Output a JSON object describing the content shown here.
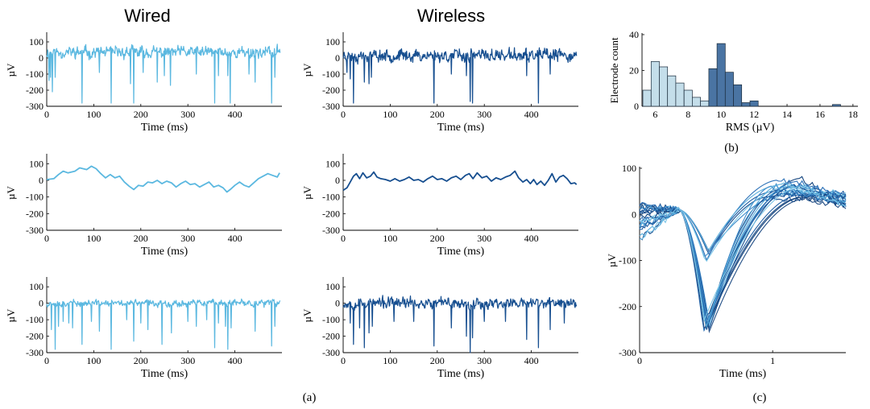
{
  "column_titles": {
    "wired": "Wired",
    "wireless": "Wireless"
  },
  "panel_labels": {
    "a": "(a)",
    "b": "(b)",
    "c": "(c)"
  },
  "colors": {
    "wired": "#5bb8e0",
    "wireless": "#174f90",
    "axis": "#000000"
  },
  "chart_data": [
    {
      "id": "a-wired-raw",
      "type": "line",
      "xlabel": "Time (ms)",
      "ylabel": "µV",
      "xlim": [
        0,
        500
      ],
      "ylim": [
        -300,
        150
      ],
      "xticks": [
        0,
        100,
        200,
        300,
        400
      ],
      "yticks": [
        100,
        0,
        -100,
        -200,
        -300
      ],
      "color": "#5bb8e0",
      "baseline": {
        "mean": 35,
        "noise": 40
      },
      "spikes": [
        [
          5,
          -140
        ],
        [
          8,
          -120
        ],
        [
          12,
          -210
        ],
        [
          18,
          -120
        ],
        [
          75,
          -280
        ],
        [
          112,
          -90
        ],
        [
          137,
          -280
        ],
        [
          178,
          -160
        ],
        [
          185,
          -280
        ],
        [
          205,
          -90
        ],
        [
          235,
          -150
        ],
        [
          250,
          -110
        ],
        [
          263,
          -170
        ],
        [
          318,
          -100
        ],
        [
          357,
          -280
        ],
        [
          365,
          -110
        ],
        [
          385,
          -110
        ],
        [
          390,
          -280
        ],
        [
          430,
          -100
        ],
        [
          443,
          -150
        ],
        [
          478,
          -280
        ],
        [
          485,
          -120
        ]
      ]
    },
    {
      "id": "a-wireless-raw",
      "type": "line",
      "xlabel": "Time (ms)",
      "ylabel": "µV",
      "xlim": [
        0,
        500
      ],
      "ylim": [
        -300,
        150
      ],
      "xticks": [
        0,
        100,
        200,
        300,
        400
      ],
      "yticks": [
        100,
        0,
        -100,
        -200,
        -300
      ],
      "color": "#174f90",
      "baseline": {
        "mean": 15,
        "noise": 42
      },
      "spikes": [
        [
          8,
          -90
        ],
        [
          15,
          -130
        ],
        [
          22,
          -280
        ],
        [
          45,
          -150
        ],
        [
          55,
          -160
        ],
        [
          60,
          -120
        ],
        [
          193,
          -280
        ],
        [
          230,
          -100
        ],
        [
          262,
          -110
        ],
        [
          270,
          -270
        ],
        [
          275,
          -280
        ],
        [
          390,
          -110
        ],
        [
          415,
          -280
        ],
        [
          440,
          -100
        ]
      ]
    },
    {
      "id": "a-wired-lfp",
      "type": "line",
      "xlabel": "Time (ms)",
      "ylabel": "µV",
      "xlim": [
        0,
        500
      ],
      "ylim": [
        -300,
        150
      ],
      "xticks": [
        0,
        100,
        200,
        300,
        400
      ],
      "yticks": [
        100,
        0,
        -100,
        -200,
        -300
      ],
      "color": "#5bb8e0",
      "points": [
        [
          0,
          5
        ],
        [
          15,
          10
        ],
        [
          25,
          35
        ],
        [
          35,
          55
        ],
        [
          45,
          45
        ],
        [
          60,
          55
        ],
        [
          70,
          75
        ],
        [
          85,
          65
        ],
        [
          95,
          85
        ],
        [
          105,
          70
        ],
        [
          115,
          40
        ],
        [
          125,
          15
        ],
        [
          135,
          35
        ],
        [
          145,
          15
        ],
        [
          155,
          25
        ],
        [
          165,
          -10
        ],
        [
          175,
          -35
        ],
        [
          185,
          -55
        ],
        [
          195,
          -30
        ],
        [
          205,
          -35
        ],
        [
          215,
          -10
        ],
        [
          225,
          -15
        ],
        [
          235,
          0
        ],
        [
          245,
          -20
        ],
        [
          255,
          -5
        ],
        [
          265,
          -15
        ],
        [
          275,
          -40
        ],
        [
          285,
          -20
        ],
        [
          295,
          -5
        ],
        [
          305,
          -25
        ],
        [
          315,
          -20
        ],
        [
          325,
          -40
        ],
        [
          335,
          -25
        ],
        [
          345,
          -10
        ],
        [
          355,
          -40
        ],
        [
          365,
          -30
        ],
        [
          375,
          -45
        ],
        [
          383,
          -70
        ],
        [
          390,
          -55
        ],
        [
          400,
          -30
        ],
        [
          410,
          -10
        ],
        [
          420,
          -30
        ],
        [
          430,
          -40
        ],
        [
          440,
          -15
        ],
        [
          450,
          10
        ],
        [
          460,
          25
        ],
        [
          470,
          40
        ],
        [
          480,
          30
        ],
        [
          490,
          20
        ],
        [
          495,
          45
        ]
      ]
    },
    {
      "id": "a-wireless-lfp",
      "type": "line",
      "xlabel": "Time (ms)",
      "ylabel": "µV",
      "xlim": [
        0,
        500
      ],
      "ylim": [
        -300,
        150
      ],
      "xticks": [
        0,
        100,
        200,
        300,
        400
      ],
      "yticks": [
        100,
        0,
        -100,
        -200,
        -300
      ],
      "color": "#174f90",
      "points": [
        [
          0,
          -60
        ],
        [
          8,
          -45
        ],
        [
          15,
          -10
        ],
        [
          22,
          25
        ],
        [
          28,
          40
        ],
        [
          35,
          10
        ],
        [
          42,
          45
        ],
        [
          50,
          15
        ],
        [
          58,
          25
        ],
        [
          65,
          50
        ],
        [
          72,
          20
        ],
        [
          80,
          10
        ],
        [
          90,
          5
        ],
        [
          100,
          -5
        ],
        [
          110,
          10
        ],
        [
          120,
          -5
        ],
        [
          130,
          5
        ],
        [
          140,
          20
        ],
        [
          150,
          0
        ],
        [
          160,
          5
        ],
        [
          170,
          -10
        ],
        [
          180,
          10
        ],
        [
          190,
          25
        ],
        [
          200,
          5
        ],
        [
          210,
          10
        ],
        [
          220,
          -5
        ],
        [
          230,
          15
        ],
        [
          240,
          25
        ],
        [
          250,
          5
        ],
        [
          260,
          30
        ],
        [
          268,
          40
        ],
        [
          276,
          10
        ],
        [
          285,
          45
        ],
        [
          295,
          15
        ],
        [
          305,
          25
        ],
        [
          315,
          -5
        ],
        [
          325,
          15
        ],
        [
          335,
          5
        ],
        [
          345,
          20
        ],
        [
          355,
          30
        ],
        [
          365,
          55
        ],
        [
          373,
          15
        ],
        [
          382,
          -10
        ],
        [
          390,
          5
        ],
        [
          398,
          -20
        ],
        [
          405,
          5
        ],
        [
          412,
          -25
        ],
        [
          420,
          -5
        ],
        [
          428,
          -30
        ],
        [
          436,
          0
        ],
        [
          444,
          40
        ],
        [
          452,
          -10
        ],
        [
          460,
          20
        ],
        [
          468,
          30
        ],
        [
          476,
          10
        ],
        [
          484,
          -20
        ],
        [
          492,
          -15
        ],
        [
          496,
          -25
        ]
      ]
    },
    {
      "id": "a-wired-filtered",
      "type": "line",
      "xlabel": "Time (ms)",
      "ylabel": "µV",
      "xlim": [
        0,
        500
      ],
      "ylim": [
        -300,
        150
      ],
      "xticks": [
        0,
        100,
        200,
        300,
        400
      ],
      "yticks": [
        100,
        0,
        -100,
        -200,
        -300
      ],
      "color": "#5bb8e0",
      "baseline": {
        "mean": 0,
        "noise": 22
      },
      "spikes": [
        [
          10,
          -160
        ],
        [
          18,
          -280
        ],
        [
          25,
          -140
        ],
        [
          35,
          -110
        ],
        [
          47,
          -120
        ],
        [
          55,
          -150
        ],
        [
          75,
          -250
        ],
        [
          95,
          -110
        ],
        [
          112,
          -170
        ],
        [
          137,
          -280
        ],
        [
          170,
          -100
        ],
        [
          185,
          -230
        ],
        [
          200,
          -120
        ],
        [
          215,
          -160
        ],
        [
          245,
          -250
        ],
        [
          265,
          -180
        ],
        [
          300,
          -110
        ],
        [
          318,
          -140
        ],
        [
          340,
          -100
        ],
        [
          357,
          -270
        ],
        [
          365,
          -120
        ],
        [
          380,
          -140
        ],
        [
          385,
          -280
        ],
        [
          392,
          -150
        ],
        [
          443,
          -170
        ],
        [
          478,
          -260
        ],
        [
          485,
          -140
        ]
      ]
    },
    {
      "id": "a-wireless-filtered",
      "type": "line",
      "xlabel": "Time (ms)",
      "ylabel": "µV",
      "xlim": [
        0,
        500
      ],
      "ylim": [
        -300,
        150
      ],
      "xticks": [
        0,
        100,
        200,
        300,
        400
      ],
      "yticks": [
        100,
        0,
        -100,
        -200,
        -300
      ],
      "color": "#174f90",
      "baseline": {
        "mean": 0,
        "noise": 38
      },
      "spikes": [
        [
          15,
          -120
        ],
        [
          22,
          -250
        ],
        [
          35,
          -150
        ],
        [
          45,
          -270
        ],
        [
          55,
          -180
        ],
        [
          62,
          -140
        ],
        [
          108,
          -110
        ],
        [
          150,
          -110
        ],
        [
          193,
          -260
        ],
        [
          230,
          -150
        ],
        [
          262,
          -200
        ],
        [
          270,
          -300
        ],
        [
          275,
          -210
        ],
        [
          300,
          -110
        ],
        [
          345,
          -110
        ],
        [
          390,
          -220
        ],
        [
          415,
          -270
        ],
        [
          440,
          -160
        ],
        [
          470,
          -120
        ]
      ]
    },
    {
      "id": "b-rms-histogram",
      "type": "bar",
      "xlabel": "RMS (µV)",
      "ylabel": "Electrode count",
      "xlim": [
        5.2,
        18.3
      ],
      "ylim": [
        0,
        40
      ],
      "xticks": [
        6,
        8,
        10,
        12,
        14,
        16,
        18
      ],
      "yticks": [
        0,
        20,
        40
      ],
      "bin_width": 0.5,
      "series": [
        {
          "color": "#c4deea",
          "bins": [
            [
              5.5,
              9
            ],
            [
              6,
              25
            ],
            [
              6.5,
              22
            ],
            [
              7,
              17
            ],
            [
              7.5,
              13
            ],
            [
              8,
              9
            ],
            [
              8.5,
              5
            ],
            [
              9,
              3
            ]
          ]
        },
        {
          "color": "#4a74a3",
          "bins": [
            [
              9.5,
              21
            ],
            [
              10,
              35
            ],
            [
              10.5,
              19
            ],
            [
              11,
              12
            ],
            [
              11.5,
              2
            ],
            [
              12,
              3
            ],
            [
              17,
              1
            ]
          ]
        }
      ]
    },
    {
      "id": "c-spike-waveforms",
      "type": "line",
      "xlabel": "Time (ms)",
      "ylabel": "µV",
      "xlim": [
        0,
        1.55
      ],
      "ylim": [
        -300,
        100
      ],
      "xticks": [
        0,
        1
      ],
      "yticks": [
        100,
        0,
        -100,
        -200,
        -300
      ],
      "colors": [
        "#174f90",
        "#1e5ea3",
        "#2d72b8",
        "#3f8dcb",
        "#5aaedc",
        "#7bc4e6",
        "#234f86",
        "#14457f"
      ],
      "trough_time": 0.5,
      "trough_depths": [
        -250,
        -255,
        -248,
        -240,
        -235,
        -245,
        -252,
        -230,
        -90,
        -85,
        -100,
        -95,
        -80,
        -105
      ],
      "waveform_count": 22
    }
  ]
}
